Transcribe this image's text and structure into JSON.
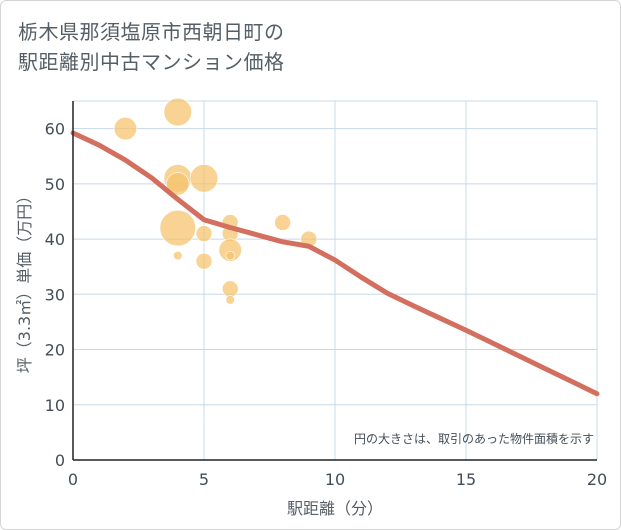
{
  "page": {
    "title_line1": "栃木県那須塩原市西朝日町の",
    "title_line2": "駅距離別中古マンション価格"
  },
  "colors": {
    "bubble": "#f5c26b",
    "trend": "#d36f5e",
    "grid": "#c8d8e8",
    "axis": "#222222"
  },
  "chart_data": {
    "type": "scatter",
    "title": "栃木県那須塩原市西朝日町の駅距離別中古マンション価格",
    "xlabel": "駅距離（分）",
    "ylabel": "坪（3.3㎡）単価（万円）",
    "xlim": [
      0,
      20
    ],
    "ylim": [
      0,
      65
    ],
    "xticks": [
      0,
      5,
      10,
      15,
      20
    ],
    "yticks": [
      0,
      10,
      20,
      30,
      40,
      50,
      60
    ],
    "grid": true,
    "note": "円の大きさは、取引のあった物件面積を示す",
    "bubbles": [
      {
        "x": 2,
        "y": 60,
        "size": 2
      },
      {
        "x": 4,
        "y": 63,
        "size": 3
      },
      {
        "x": 4,
        "y": 51,
        "size": 3
      },
      {
        "x": 4,
        "y": 50,
        "size": 2
      },
      {
        "x": 5,
        "y": 51,
        "size": 3
      },
      {
        "x": 4,
        "y": 42,
        "size": 5
      },
      {
        "x": 4,
        "y": 37,
        "size": 0.3
      },
      {
        "x": 5,
        "y": 41,
        "size": 1
      },
      {
        "x": 5,
        "y": 36,
        "size": 1
      },
      {
        "x": 6,
        "y": 43,
        "size": 1
      },
      {
        "x": 6,
        "y": 41,
        "size": 1
      },
      {
        "x": 6,
        "y": 38,
        "size": 2
      },
      {
        "x": 6,
        "y": 37,
        "size": 0.3
      },
      {
        "x": 6,
        "y": 31,
        "size": 1
      },
      {
        "x": 6,
        "y": 29,
        "size": 0.3
      },
      {
        "x": 8,
        "y": 43,
        "size": 1
      },
      {
        "x": 9,
        "y": 40,
        "size": 1
      }
    ],
    "trend": {
      "x": [
        0,
        1,
        2,
        3,
        4,
        5,
        6,
        7,
        8,
        9,
        10,
        11,
        12,
        13,
        14,
        15,
        16,
        17,
        18,
        19,
        20
      ],
      "y": [
        59.2,
        57.0,
        54.3,
        51.1,
        47.2,
        43.5,
        42.1,
        40.8,
        39.5,
        38.7,
        36.2,
        33.1,
        30.2,
        27.9,
        25.7,
        23.5,
        21.2,
        18.9,
        16.6,
        14.3,
        12.0
      ]
    }
  }
}
